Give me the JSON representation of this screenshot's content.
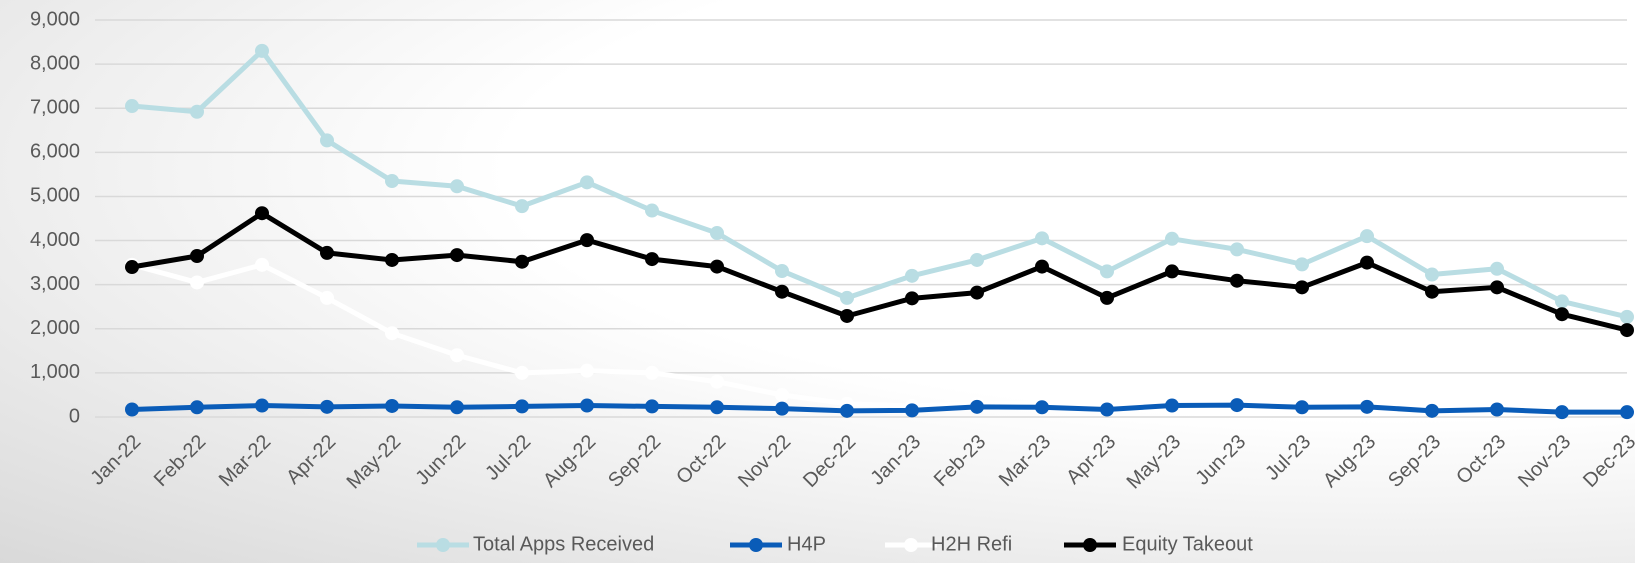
{
  "chart_data": {
    "type": "line",
    "categories": [
      "Jan-22",
      "Feb-22",
      "Mar-22",
      "Apr-22",
      "May-22",
      "Jun-22",
      "Jul-22",
      "Aug-22",
      "Sep-22",
      "Oct-22",
      "Nov-22",
      "Dec-22",
      "Jan-23",
      "Feb-23",
      "Mar-23",
      "Apr-23",
      "May-23",
      "Jun-23",
      "Jul-23",
      "Aug-23",
      "Sep-23",
      "Oct-23",
      "Nov-23",
      "Dec-23"
    ],
    "series": [
      {
        "name": "Total Apps Received",
        "color": "#b9dde3",
        "values": [
          7050,
          6920,
          8300,
          6270,
          5350,
          5230,
          4780,
          5320,
          4680,
          4170,
          3310,
          2700,
          3200,
          3560,
          4050,
          3300,
          4040,
          3800,
          3460,
          4100,
          3230,
          3360,
          2620,
          2270
        ]
      },
      {
        "name": "H4P",
        "color": "#0a5cb8",
        "values": [
          170,
          220,
          260,
          230,
          250,
          220,
          240,
          260,
          240,
          220,
          190,
          140,
          150,
          230,
          220,
          170,
          260,
          270,
          220,
          230,
          140,
          170,
          110,
          110
        ]
      },
      {
        "name": "H2H Refi",
        "color": "#ffffff",
        "values": [
          3450,
          3050,
          3450,
          2700,
          1900,
          1400,
          1000,
          1050,
          1000,
          800,
          500,
          300,
          250,
          300,
          300,
          250,
          300,
          300,
          250,
          300,
          180,
          250,
          200,
          230
        ]
      },
      {
        "name": "Equity Takeout",
        "color": "#000000",
        "values": [
          3400,
          3650,
          4620,
          3720,
          3560,
          3670,
          3520,
          4010,
          3580,
          3410,
          2840,
          2290,
          2690,
          2820,
          3410,
          2700,
          3300,
          3090,
          2940,
          3500,
          2840,
          2940,
          2330,
          1970
        ]
      }
    ],
    "ylim": [
      0,
      9000
    ],
    "yticks": [
      0,
      {
        "value": 1000,
        "label": "1,000"
      },
      {
        "value": 2000,
        "label": "2,000"
      },
      {
        "value": 3000,
        "label": "3,000"
      },
      {
        "value": 4000,
        "label": "4,000"
      },
      {
        "value": 5000,
        "label": "5,000"
      },
      {
        "value": 6000,
        "label": "6,000"
      },
      {
        "value": 7000,
        "label": "7,000"
      },
      {
        "value": 8000,
        "label": "8,000"
      },
      {
        "value": 9000,
        "label": "9,000"
      }
    ],
    "grid": true
  }
}
